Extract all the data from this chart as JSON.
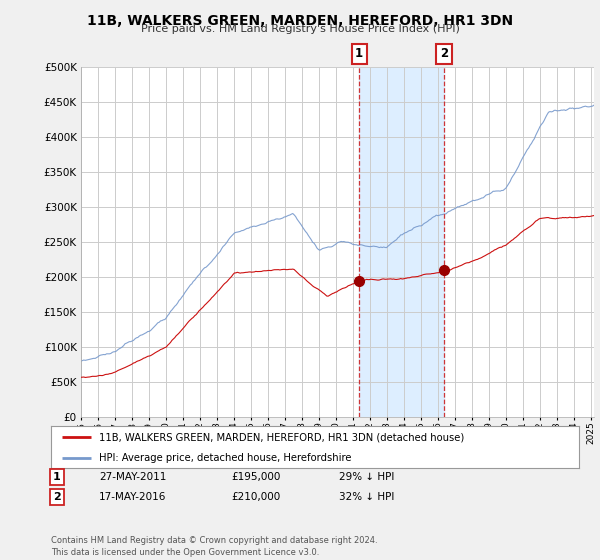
{
  "title": "11B, WALKERS GREEN, MARDEN, HEREFORD, HR1 3DN",
  "subtitle": "Price paid vs. HM Land Registry's House Price Index (HPI)",
  "ylabel_ticks": [
    "£0",
    "£50K",
    "£100K",
    "£150K",
    "£200K",
    "£250K",
    "£300K",
    "£350K",
    "£400K",
    "£450K",
    "£500K"
  ],
  "ytick_values": [
    0,
    50000,
    100000,
    150000,
    200000,
    250000,
    300000,
    350000,
    400000,
    450000,
    500000
  ],
  "ylim": [
    0,
    500000
  ],
  "xlim_start": 1995.0,
  "xlim_end": 2025.2,
  "hpi_color": "#7799cc",
  "price_color": "#cc1111",
  "sale1_x": 2011.38,
  "sale1_y": 195000,
  "sale2_x": 2016.37,
  "sale2_y": 210000,
  "vline_color": "#cc2222",
  "highlight_color": "#ddeeff",
  "legend_label1": "11B, WALKERS GREEN, MARDEN, HEREFORD, HR1 3DN (detached house)",
  "legend_label2": "HPI: Average price, detached house, Herefordshire",
  "table_row1": [
    "1",
    "27-MAY-2011",
    "£195,000",
    "29% ↓ HPI"
  ],
  "table_row2": [
    "2",
    "17-MAY-2016",
    "£210,000",
    "32% ↓ HPI"
  ],
  "footnote": "Contains HM Land Registry data © Crown copyright and database right 2024.\nThis data is licensed under the Open Government Licence v3.0.",
  "background_color": "#f0f0f0",
  "plot_bg_color": "#ffffff",
  "grid_color": "#cccccc"
}
